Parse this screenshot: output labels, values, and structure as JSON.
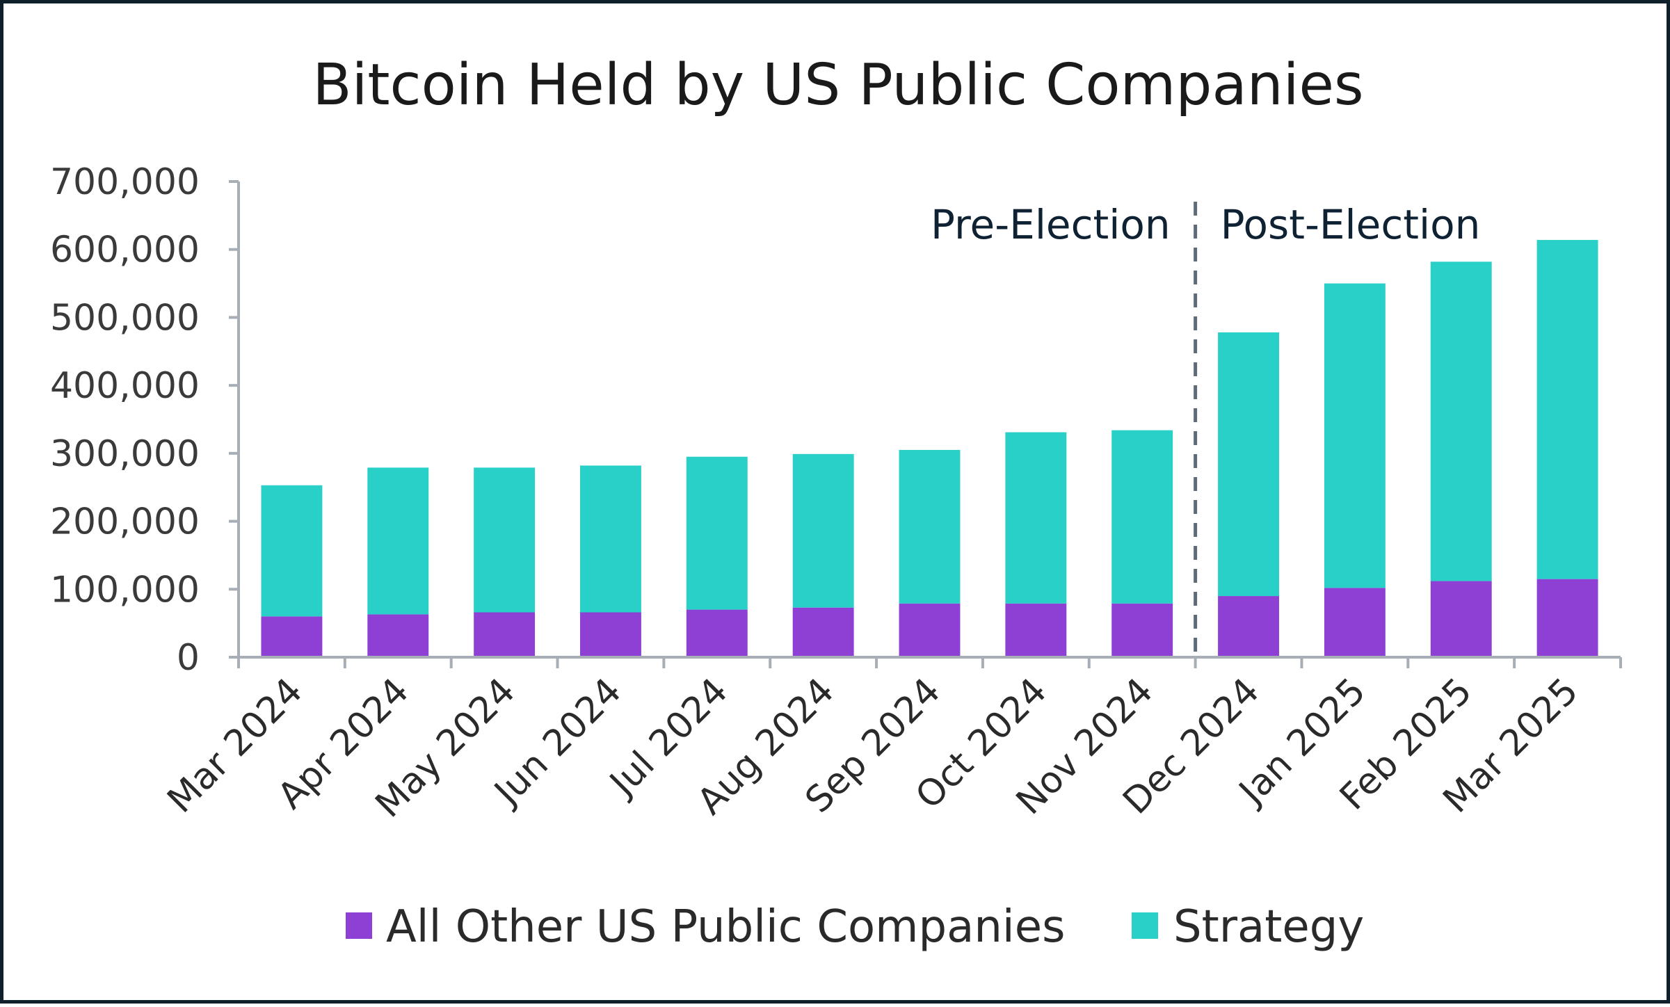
{
  "chart_data": {
    "type": "bar",
    "stacked": true,
    "title": "Bitcoin Held by US Public Companies",
    "xlabel": "",
    "ylabel": "",
    "categories": [
      "Mar 2024",
      "Apr 2024",
      "May 2024",
      "Jun 2024",
      "Jul 2024",
      "Aug 2024",
      "Sep 2024",
      "Oct 2024",
      "Nov 2024",
      "Dec 2024",
      "Jan 2025",
      "Feb 2025",
      "Mar 2025"
    ],
    "series": [
      {
        "name": "All Other US Public Companies",
        "color": "#8e3fd4",
        "values": [
          60000,
          63000,
          66000,
          66000,
          70000,
          73000,
          79000,
          79000,
          79000,
          90000,
          102000,
          112000,
          115000
        ]
      },
      {
        "name": "Strategy",
        "color": "#29d0c8",
        "values": [
          193000,
          216000,
          213000,
          216000,
          225000,
          226000,
          226000,
          252000,
          255000,
          388000,
          448000,
          470000,
          499000
        ]
      }
    ],
    "ylim": [
      0,
      700000
    ],
    "yticks": [
      0,
      100000,
      200000,
      300000,
      400000,
      500000,
      600000,
      700000
    ],
    "ytick_labels": [
      "0",
      "100,000",
      "200,000",
      "300,000",
      "400,000",
      "500,000",
      "600,000",
      "700,000"
    ],
    "annotations": {
      "divider_between": [
        "Nov 2024",
        "Dec 2024"
      ],
      "pre_label": "Pre-Election",
      "post_label": "Post-Election"
    },
    "grid": false,
    "legend_position": "bottom"
  }
}
